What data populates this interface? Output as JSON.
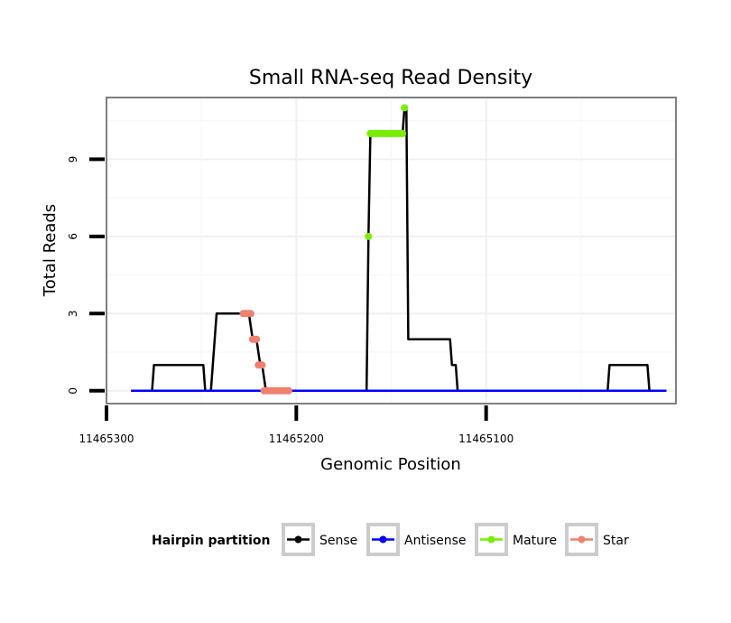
{
  "chart_data": {
    "type": "line",
    "title": "Small RNA-seq Read Density",
    "xlabel": "Genomic Position",
    "ylabel": "Total Reads",
    "x_reversed": true,
    "xlim": [
      11465300,
      11465000
    ],
    "ylim": [
      -0.5,
      11.4
    ],
    "x_ticks": [
      11465300,
      11465200,
      11465100
    ],
    "x_tick_labels": [
      "11465300",
      "11465200",
      "11465100"
    ],
    "y_ticks": [
      0,
      3,
      6,
      9
    ],
    "y_tick_labels": [
      "0",
      "3",
      "6",
      "9"
    ],
    "grid": true,
    "legend": {
      "title": "Hairpin partition",
      "position": "bottom",
      "entries": [
        "Sense",
        "Antisense",
        "Mature",
        "Star"
      ]
    },
    "series": [
      {
        "name": "Sense",
        "color": "#000000",
        "x": [
          11465287,
          11465276,
          11465275,
          11465249,
          11465248,
          11465245,
          11465242,
          11465226,
          11465225,
          11465223,
          11465221,
          11465219,
          11465218,
          11465216,
          11465215,
          11465211,
          11465210,
          11465163,
          11465162,
          11465161,
          11465144,
          11465143,
          11465142,
          11465141,
          11465140,
          11465119,
          11465118,
          11465116,
          11465115,
          11465036,
          11465035,
          11465015,
          11465014,
          11465005
        ],
        "y": [
          0,
          0,
          1,
          1,
          0,
          0,
          3,
          3,
          3,
          2,
          2,
          1,
          1,
          0,
          0,
          0,
          0,
          0,
          6,
          10,
          10,
          11,
          11,
          2,
          2,
          2,
          1,
          1,
          0,
          0,
          1,
          1,
          0,
          0
        ]
      },
      {
        "name": "Antisense",
        "color": "#0000ff",
        "x": [
          11465287,
          11465005
        ],
        "y": [
          0,
          0
        ]
      },
      {
        "name": "Mature",
        "color": "#77ee00",
        "points": [
          [
            11465162,
            6
          ],
          [
            11465161,
            10
          ],
          [
            11465160,
            10
          ],
          [
            11465159,
            10
          ],
          [
            11465158,
            10
          ],
          [
            11465157,
            10
          ],
          [
            11465156,
            10
          ],
          [
            11465155,
            10
          ],
          [
            11465154,
            10
          ],
          [
            11465153,
            10
          ],
          [
            11465152,
            10
          ],
          [
            11465151,
            10
          ],
          [
            11465150,
            10
          ],
          [
            11465149,
            10
          ],
          [
            11465148,
            10
          ],
          [
            11465147,
            10
          ],
          [
            11465146,
            10
          ],
          [
            11465145,
            10
          ],
          [
            11465144,
            10
          ],
          [
            11465143,
            11
          ]
        ]
      },
      {
        "name": "Star",
        "color": "#f08070",
        "points": [
          [
            11465228,
            3
          ],
          [
            11465227,
            3
          ],
          [
            11465226,
            3
          ],
          [
            11465225,
            3
          ],
          [
            11465224,
            3
          ],
          [
            11465223,
            2
          ],
          [
            11465222,
            2
          ],
          [
            11465221,
            2
          ],
          [
            11465220,
            1
          ],
          [
            11465219,
            1
          ],
          [
            11465218,
            1
          ],
          [
            11465217,
            0
          ],
          [
            11465216,
            0
          ],
          [
            11465215,
            0
          ],
          [
            11465214,
            0
          ],
          [
            11465213,
            0
          ],
          [
            11465212,
            0
          ],
          [
            11465211,
            0
          ],
          [
            11465210,
            0
          ],
          [
            11465209,
            0
          ],
          [
            11465208,
            0
          ],
          [
            11465207,
            0
          ],
          [
            11465206,
            0
          ],
          [
            11465205,
            0
          ],
          [
            11465204,
            0
          ]
        ]
      }
    ]
  }
}
